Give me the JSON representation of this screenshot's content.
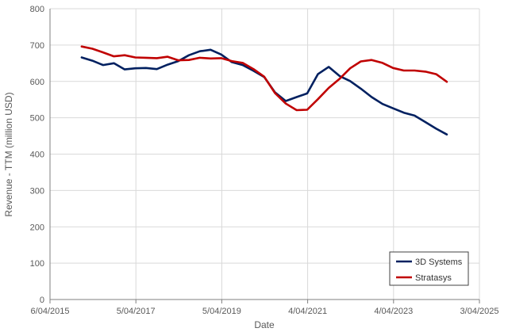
{
  "chart_data": {
    "type": "line",
    "title": "",
    "xlabel": "Date",
    "ylabel": "Revenue - TTM (million USD)",
    "ylim": [
      0,
      800
    ],
    "yticks": [
      0,
      100,
      200,
      300,
      400,
      500,
      600,
      700,
      800
    ],
    "xlim": [
      "2015-04-06",
      "2025-04-03"
    ],
    "xticks": [
      "2015-04-06",
      "2017-04-05",
      "2019-04-05",
      "2021-04-04",
      "2023-04-04",
      "2025-04-03"
    ],
    "xtick_labels": [
      "6/04/2015",
      "5/04/2017",
      "5/04/2019",
      "4/04/2021",
      "4/04/2023",
      "3/04/2025"
    ],
    "grid": true,
    "legend_position": "bottom-right",
    "series": [
      {
        "name": "3D Systems",
        "color": "#002060",
        "points": [
          [
            "2015-12-31",
            666
          ],
          [
            "2016-03-31",
            657
          ],
          [
            "2016-06-30",
            645
          ],
          [
            "2016-09-30",
            650
          ],
          [
            "2016-12-31",
            633
          ],
          [
            "2017-03-31",
            636
          ],
          [
            "2017-06-30",
            637
          ],
          [
            "2017-09-30",
            634
          ],
          [
            "2017-12-31",
            646
          ],
          [
            "2018-03-31",
            656
          ],
          [
            "2018-06-30",
            672
          ],
          [
            "2018-09-30",
            683
          ],
          [
            "2018-12-31",
            687
          ],
          [
            "2019-03-31",
            674
          ],
          [
            "2019-06-30",
            653
          ],
          [
            "2019-09-30",
            645
          ],
          [
            "2019-12-31",
            629
          ],
          [
            "2020-03-31",
            612
          ],
          [
            "2020-06-30",
            570
          ],
          [
            "2020-09-30",
            546
          ],
          [
            "2020-12-31",
            557
          ],
          [
            "2021-03-31",
            567
          ],
          [
            "2021-06-30",
            620
          ],
          [
            "2021-09-30",
            640
          ],
          [
            "2021-12-31",
            615
          ],
          [
            "2022-03-31",
            601
          ],
          [
            "2022-06-30",
            580
          ],
          [
            "2022-09-30",
            557
          ],
          [
            "2022-12-31",
            538
          ],
          [
            "2023-03-31",
            526
          ],
          [
            "2023-06-30",
            514
          ],
          [
            "2023-09-30",
            506
          ],
          [
            "2023-12-31",
            488
          ],
          [
            "2024-03-31",
            470
          ],
          [
            "2024-06-30",
            454
          ]
        ]
      },
      {
        "name": "Stratasys",
        "color": "#C00000",
        "points": [
          [
            "2015-12-31",
            696
          ],
          [
            "2016-03-31",
            690
          ],
          [
            "2016-06-30",
            680
          ],
          [
            "2016-09-30",
            669
          ],
          [
            "2016-12-31",
            672
          ],
          [
            "2017-03-31",
            666
          ],
          [
            "2017-06-30",
            665
          ],
          [
            "2017-09-30",
            664
          ],
          [
            "2017-12-31",
            668
          ],
          [
            "2018-03-31",
            658
          ],
          [
            "2018-06-30",
            659
          ],
          [
            "2018-09-30",
            665
          ],
          [
            "2018-12-31",
            663
          ],
          [
            "2019-03-31",
            664
          ],
          [
            "2019-06-30",
            656
          ],
          [
            "2019-09-30",
            651
          ],
          [
            "2019-12-31",
            634
          ],
          [
            "2020-03-31",
            613
          ],
          [
            "2020-06-30",
            568
          ],
          [
            "2020-09-30",
            539
          ],
          [
            "2020-12-31",
            521
          ],
          [
            "2021-03-31",
            522
          ],
          [
            "2021-06-30",
            551
          ],
          [
            "2021-09-30",
            582
          ],
          [
            "2021-12-31",
            607
          ],
          [
            "2022-03-31",
            636
          ],
          [
            "2022-06-30",
            655
          ],
          [
            "2022-09-30",
            659
          ],
          [
            "2022-12-31",
            651
          ],
          [
            "2023-03-31",
            637
          ],
          [
            "2023-06-30",
            630
          ],
          [
            "2023-09-30",
            630
          ],
          [
            "2023-12-31",
            627
          ],
          [
            "2024-03-31",
            620
          ],
          [
            "2024-06-30",
            599
          ]
        ]
      }
    ]
  }
}
